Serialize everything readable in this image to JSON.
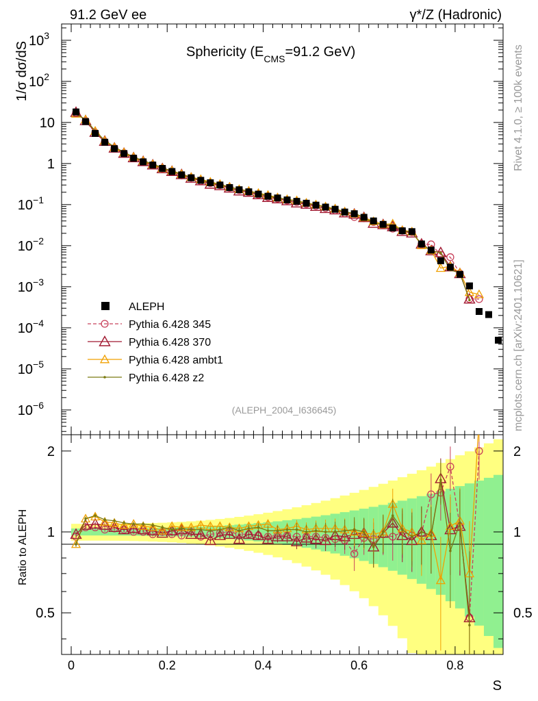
{
  "header": {
    "left": "91.2 GeV ee",
    "right": "γ*/Z (Hadronic)"
  },
  "side_labels": {
    "top": "Rivet 4.1.0, ≥ 100k events",
    "bottom": "mcplots.cern.ch [arXiv:2401.10621]"
  },
  "chart_data": {
    "type": "line",
    "title": "Sphericity (E_CMS=91.2 GeV)",
    "title_parts": {
      "main": "Sphericity (E",
      "sub": "CMS",
      "rest": "=91.2 GeV)"
    },
    "analysis_id": "(ALEPH_2004_I636645)",
    "ylabel": "1/σ  dσ/dS",
    "xlabel": "S",
    "ratio_ylabel": "Ratio to ALEPH",
    "xlim": [
      -0.02,
      0.9
    ],
    "ylim_log": [
      2.5e-07,
      2500
    ],
    "ratio_ylim": [
      0.35,
      2.3
    ],
    "x_ticks": [
      "0",
      "0.2",
      "0.4",
      "0.6",
      "0.8"
    ],
    "y_ticks": [
      "10^-6",
      "10^-5",
      "10^-4",
      "10^-3",
      "10^-2",
      "10^-1",
      "1",
      "10",
      "10^2",
      "10^3"
    ],
    "ratio_ticks": [
      "0.5",
      "1",
      "2"
    ],
    "x": [
      0.01,
      0.03,
      0.05,
      0.07,
      0.09,
      0.11,
      0.13,
      0.15,
      0.17,
      0.19,
      0.21,
      0.23,
      0.25,
      0.27,
      0.29,
      0.31,
      0.33,
      0.35,
      0.37,
      0.39,
      0.41,
      0.43,
      0.45,
      0.47,
      0.49,
      0.51,
      0.53,
      0.55,
      0.57,
      0.59,
      0.61,
      0.63,
      0.65,
      0.67,
      0.69,
      0.71,
      0.73,
      0.75,
      0.77,
      0.79,
      0.81,
      0.83,
      0.85,
      0.87,
      0.89
    ],
    "data": {
      "name": "ALEPH",
      "values": [
        18,
        10.5,
        5.4,
        3.3,
        2.3,
        1.75,
        1.35,
        1.1,
        0.92,
        0.76,
        0.64,
        0.53,
        0.45,
        0.39,
        0.34,
        0.3,
        0.26,
        0.23,
        0.205,
        0.18,
        0.16,
        0.145,
        0.13,
        0.12,
        0.108,
        0.097,
        0.087,
        0.077,
        0.066,
        0.06,
        0.049,
        0.04,
        0.033,
        0.027,
        0.023,
        0.022,
        0.011,
        0.0078,
        0.0043,
        0.003,
        0.002,
        0.00105,
        0.00025,
        0.00021,
        5e-05
      ]
    },
    "series": [
      {
        "name": "Pythia 6.428 345",
        "color": "#c8405a",
        "ratio": [
          0.96,
          1.04,
          1.04,
          1.02,
          1.03,
          1.02,
          1.0,
          1.0,
          0.98,
          1.0,
          0.98,
          0.97,
          1.0,
          0.96,
          0.98,
          0.99,
          1.0,
          0.98,
          0.98,
          0.97,
          0.96,
          0.97,
          0.97,
          0.96,
          0.96,
          0.96,
          0.95,
          0.94,
          0.93,
          0.83,
          0.95,
          0.94,
          0.98,
          0.96,
          1.0,
          0.97,
          0.99,
          1.38,
          1.4,
          1.75,
          1.05,
          0.48,
          2.0
        ]
      },
      {
        "name": "Pythia 6.428 370",
        "color": "#a01830",
        "ratio": [
          0.98,
          1.06,
          1.07,
          1.06,
          1.04,
          1.02,
          1.03,
          1.02,
          1.01,
          0.99,
          1.01,
          1.02,
          0.98,
          0.98,
          0.93,
          0.97,
          0.98,
          0.94,
          0.98,
          0.97,
          0.94,
          0.96,
          0.96,
          0.92,
          0.95,
          0.94,
          0.93,
          0.97,
          0.96,
          0.98,
          0.99,
          0.88,
          0.99,
          1.08,
          0.97,
          0.93,
          1.0,
          0.97,
          1.58,
          1.02,
          1.05,
          0.48
        ]
      },
      {
        "name": "Pythia 6.428 ambt1",
        "color": "#f0a000",
        "ratio": [
          0.9,
          1.12,
          1.14,
          1.09,
          1.08,
          1.06,
          1.07,
          1.05,
          1.04,
          1.01,
          1.05,
          1.04,
          1.04,
          1.06,
          1.05,
          1.05,
          1.04,
          1.03,
          1.05,
          1.06,
          1.07,
          1.02,
          1.03,
          1.05,
          1.02,
          1.03,
          1.03,
          1.03,
          1.02,
          1.0,
          0.99,
          0.98,
          1.0,
          1.27,
          1.03,
          1.0,
          0.93,
          0.99,
          0.66,
          1.05,
          1.1,
          0.7,
          2.6
        ]
      },
      {
        "name": "Pythia 6.428 z2",
        "color": "#7a7a10",
        "ratio": [
          0.9,
          1.12,
          1.15,
          1.11,
          1.1,
          1.08,
          1.07,
          1.07,
          1.06,
          1.04,
          1.02,
          1.03,
          1.02,
          1.02,
          1.01,
          1.02,
          1.04,
          1.01,
          1.03,
          1.04,
          1.01,
          1.01,
          1.02,
          1.02,
          1.0,
          1.01,
          1.0,
          1.0,
          1.01,
          1.02,
          1.0,
          0.88,
          1.0,
          1.15,
          1.02,
          0.96,
          1.0,
          0.97,
          1.56,
          0.85,
          1.08,
          0.45
        ]
      }
    ],
    "legend": [
      "ALEPH",
      "Pythia 6.428 345",
      "Pythia 6.428 370",
      "Pythia 6.428 ambt1",
      "Pythia 6.428 z2"
    ],
    "legend_position": "lower-left"
  }
}
